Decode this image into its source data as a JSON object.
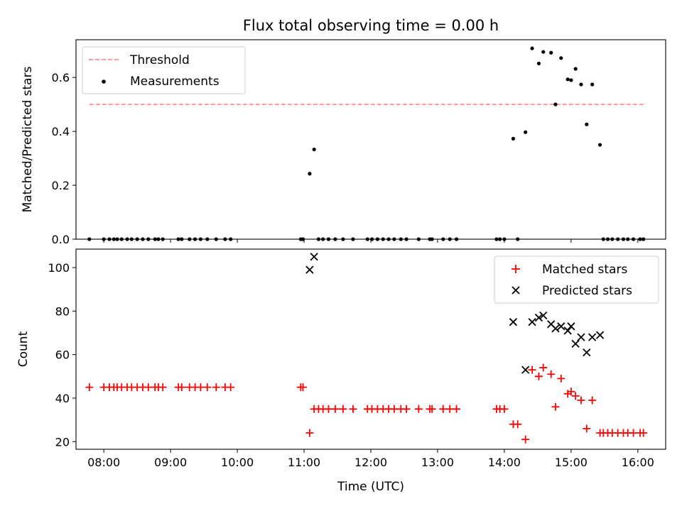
{
  "chart_data": [
    {
      "type": "scatter",
      "title": "Flux total observing time = 0.00 h",
      "ylabel": "Matched/Predicted stars",
      "xlabel": "",
      "xlim": [
        "07:35",
        "16:25"
      ],
      "ylim": [
        0,
        0.74
      ],
      "yticks": [
        0.0,
        0.2,
        0.4,
        0.6
      ],
      "ytick_labels": [
        "0.0",
        "0.2",
        "0.4",
        "0.6"
      ],
      "grid": false,
      "legend_position": "top-left",
      "threshold": {
        "name": "Threshold",
        "value": 0.5,
        "x_range": [
          "07:47",
          "16:05"
        ],
        "color": "#ff7b7b",
        "style": "dashed"
      },
      "series": [
        {
          "name": "Measurements",
          "marker": "dot",
          "color": "#000000",
          "points": [
            [
              "07:47",
              0
            ],
            [
              "08:00",
              0
            ],
            [
              "08:05",
              0
            ],
            [
              "08:09",
              0
            ],
            [
              "08:12",
              0
            ],
            [
              "08:16",
              0
            ],
            [
              "08:21",
              0
            ],
            [
              "08:25",
              0
            ],
            [
              "08:30",
              0
            ],
            [
              "08:35",
              0
            ],
            [
              "08:40",
              0
            ],
            [
              "08:46",
              0
            ],
            [
              "08:49",
              0
            ],
            [
              "08:53",
              0
            ],
            [
              "09:07",
              0
            ],
            [
              "09:10",
              0
            ],
            [
              "09:17",
              0
            ],
            [
              "09:22",
              0
            ],
            [
              "09:27",
              0
            ],
            [
              "09:33",
              0
            ],
            [
              "09:41",
              0
            ],
            [
              "09:49",
              0
            ],
            [
              "09:54",
              0
            ],
            [
              "10:57",
              0
            ],
            [
              "10:59",
              0
            ],
            [
              "11:05",
              0.243
            ],
            [
              "11:09",
              0.333
            ],
            [
              "11:13",
              0
            ],
            [
              "11:17",
              0
            ],
            [
              "11:22",
              0
            ],
            [
              "11:28",
              0
            ],
            [
              "11:35",
              0
            ],
            [
              "11:44",
              0
            ],
            [
              "11:57",
              0
            ],
            [
              "12:01",
              0
            ],
            [
              "12:06",
              0
            ],
            [
              "12:11",
              0
            ],
            [
              "12:16",
              0
            ],
            [
              "12:21",
              0
            ],
            [
              "12:27",
              0
            ],
            [
              "12:32",
              0
            ],
            [
              "12:43",
              0
            ],
            [
              "12:53",
              0
            ],
            [
              "12:55",
              0
            ],
            [
              "13:05",
              0
            ],
            [
              "13:11",
              0
            ],
            [
              "13:17",
              0
            ],
            [
              "13:53",
              0
            ],
            [
              "13:56",
              0
            ],
            [
              "14:00",
              0
            ],
            [
              "14:08",
              0.373
            ],
            [
              "14:12",
              0
            ],
            [
              "14:19",
              0.397
            ],
            [
              "14:25",
              0.708
            ],
            [
              "14:31",
              0.652
            ],
            [
              "14:35",
              0.695
            ],
            [
              "14:42",
              0.692
            ],
            [
              "14:46",
              0.5
            ],
            [
              "14:51",
              0.672
            ],
            [
              "14:57",
              0.593
            ],
            [
              "15:00",
              0.59
            ],
            [
              "15:04",
              0.632
            ],
            [
              "15:09",
              0.574
            ],
            [
              "15:14",
              0.426
            ],
            [
              "15:19",
              0.574
            ],
            [
              "15:26",
              0.35
            ],
            [
              "15:29",
              0
            ],
            [
              "15:33",
              0
            ],
            [
              "15:37",
              0
            ],
            [
              "15:42",
              0
            ],
            [
              "15:47",
              0
            ],
            [
              "15:51",
              0
            ],
            [
              "15:56",
              0
            ],
            [
              "16:02",
              0
            ],
            [
              "16:05",
              0
            ]
          ]
        }
      ]
    },
    {
      "type": "scatter",
      "title": "",
      "ylabel": "Count",
      "xlabel": "Time (UTC)",
      "xlim": [
        "07:35",
        "16:25"
      ],
      "ylim": [
        16.5,
        108.5
      ],
      "yticks": [
        20,
        40,
        60,
        80,
        100
      ],
      "ytick_labels": [
        "20",
        "40",
        "60",
        "80",
        "100"
      ],
      "xticks": [
        "08:00",
        "09:00",
        "10:00",
        "11:00",
        "12:00",
        "13:00",
        "14:00",
        "15:00",
        "16:00"
      ],
      "xtick_labels": [
        "08:00",
        "09:00",
        "10:00",
        "11:00",
        "12:00",
        "13:00",
        "14:00",
        "15:00",
        "16:00"
      ],
      "grid": false,
      "legend_position": "top-right",
      "series": [
        {
          "name": "Matched stars",
          "marker": "plus",
          "color": "#ff0000",
          "points": [
            [
              "07:47",
              45
            ],
            [
              "08:00",
              45
            ],
            [
              "08:05",
              45
            ],
            [
              "08:09",
              45
            ],
            [
              "08:12",
              45
            ],
            [
              "08:16",
              45
            ],
            [
              "08:21",
              45
            ],
            [
              "08:25",
              45
            ],
            [
              "08:30",
              45
            ],
            [
              "08:35",
              45
            ],
            [
              "08:40",
              45
            ],
            [
              "08:46",
              45
            ],
            [
              "08:49",
              45
            ],
            [
              "08:53",
              45
            ],
            [
              "09:07",
              45
            ],
            [
              "09:10",
              45
            ],
            [
              "09:17",
              45
            ],
            [
              "09:22",
              45
            ],
            [
              "09:27",
              45
            ],
            [
              "09:33",
              45
            ],
            [
              "09:41",
              45
            ],
            [
              "09:49",
              45
            ],
            [
              "09:54",
              45
            ],
            [
              "10:57",
              45
            ],
            [
              "10:59",
              45
            ],
            [
              "11:05",
              24
            ],
            [
              "11:09",
              35
            ],
            [
              "11:13",
              35
            ],
            [
              "11:17",
              35
            ],
            [
              "11:22",
              35
            ],
            [
              "11:28",
              35
            ],
            [
              "11:35",
              35
            ],
            [
              "11:44",
              35
            ],
            [
              "11:57",
              35
            ],
            [
              "12:01",
              35
            ],
            [
              "12:06",
              35
            ],
            [
              "12:11",
              35
            ],
            [
              "12:16",
              35
            ],
            [
              "12:21",
              35
            ],
            [
              "12:27",
              35
            ],
            [
              "12:32",
              35
            ],
            [
              "12:43",
              35
            ],
            [
              "12:53",
              35
            ],
            [
              "12:55",
              35
            ],
            [
              "13:05",
              35
            ],
            [
              "13:11",
              35
            ],
            [
              "13:17",
              35
            ],
            [
              "13:53",
              35
            ],
            [
              "13:56",
              35
            ],
            [
              "14:00",
              35
            ],
            [
              "14:08",
              28
            ],
            [
              "14:12",
              28
            ],
            [
              "14:19",
              21
            ],
            [
              "14:25",
              53
            ],
            [
              "14:31",
              50
            ],
            [
              "14:35",
              54
            ],
            [
              "14:42",
              51
            ],
            [
              "14:46",
              36
            ],
            [
              "14:51",
              49
            ],
            [
              "14:57",
              42
            ],
            [
              "15:00",
              43
            ],
            [
              "15:04",
              41
            ],
            [
              "15:09",
              39
            ],
            [
              "15:14",
              26
            ],
            [
              "15:19",
              39
            ],
            [
              "15:26",
              24
            ],
            [
              "15:29",
              24
            ],
            [
              "15:33",
              24
            ],
            [
              "15:37",
              24
            ],
            [
              "15:42",
              24
            ],
            [
              "15:47",
              24
            ],
            [
              "15:51",
              24
            ],
            [
              "15:56",
              24
            ],
            [
              "16:02",
              24
            ],
            [
              "16:05",
              24
            ]
          ]
        },
        {
          "name": "Predicted stars",
          "marker": "x",
          "color": "#000000",
          "points": [
            [
              "11:05",
              99
            ],
            [
              "11:09",
              105
            ],
            [
              "14:08",
              75
            ],
            [
              "14:19",
              53
            ],
            [
              "14:25",
              75
            ],
            [
              "14:31",
              77
            ],
            [
              "14:35",
              78
            ],
            [
              "14:42",
              74
            ],
            [
              "14:46",
              72
            ],
            [
              "14:51",
              73
            ],
            [
              "14:57",
              71
            ],
            [
              "15:00",
              73
            ],
            [
              "15:04",
              65
            ],
            [
              "15:09",
              68
            ],
            [
              "15:14",
              61
            ],
            [
              "15:19",
              68
            ],
            [
              "15:26",
              69
            ]
          ]
        }
      ]
    }
  ]
}
